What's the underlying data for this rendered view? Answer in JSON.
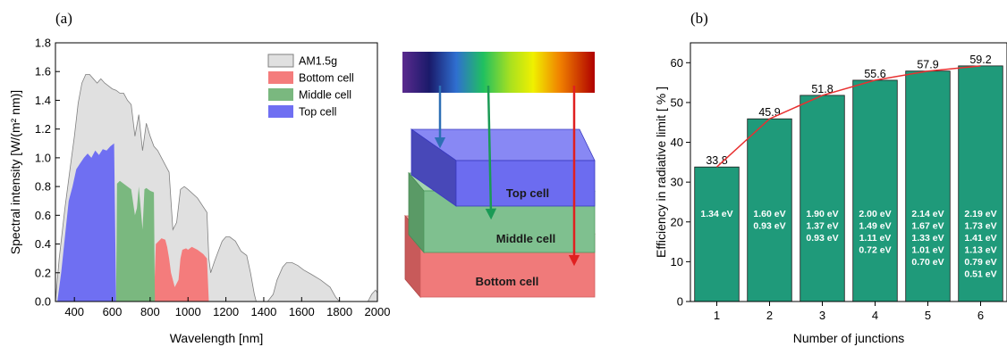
{
  "panel_a": {
    "letter": "(a)"
  },
  "panel_b": {
    "letter": "(b)"
  },
  "diagram": {
    "cells": [
      "Top cell",
      "Middle cell",
      "Bottom cell"
    ],
    "colors": {
      "top": "#7b7bf0",
      "middle": "#7fc08f",
      "bottom": "#f07a7a"
    }
  },
  "chart_data": [
    {
      "type": "area",
      "xlabel": "Wavelength [nm]",
      "ylabel": "Spectral intensity [W/(m² nm)]",
      "xlim": [
        300,
        2000
      ],
      "ylim": [
        0,
        1.8
      ],
      "xticks": [
        400,
        600,
        800,
        1000,
        1200,
        1400,
        1600,
        1800,
        2000
      ],
      "yticks": [
        0.0,
        0.2,
        0.4,
        0.6,
        0.8,
        1.0,
        1.2,
        1.4,
        1.6,
        1.8
      ],
      "legend": "top-right",
      "grid": false,
      "series": [
        {
          "name": "AM1.5g",
          "color": "#e0e0e0",
          "x": [
            300,
            320,
            350,
            380,
            400,
            420,
            440,
            460,
            480,
            500,
            520,
            540,
            560,
            580,
            600,
            620,
            640,
            660,
            680,
            700,
            720,
            740,
            760,
            780,
            800,
            820,
            840,
            860,
            880,
            900,
            920,
            940,
            960,
            980,
            1000,
            1050,
            1100,
            1110,
            1120,
            1140,
            1160,
            1180,
            1200,
            1220,
            1250,
            1280,
            1310,
            1330,
            1350,
            1360,
            1380,
            1420,
            1450,
            1470,
            1500,
            1520,
            1550,
            1580,
            1610,
            1650,
            1700,
            1750,
            1780,
            1800,
            1810,
            1830,
            1950,
            1970,
            1990,
            2000
          ],
          "y": [
            0.0,
            0.3,
            0.65,
            0.95,
            1.15,
            1.38,
            1.52,
            1.58,
            1.58,
            1.55,
            1.52,
            1.55,
            1.52,
            1.5,
            1.48,
            1.47,
            1.45,
            1.45,
            1.4,
            1.37,
            1.15,
            1.3,
            1.05,
            1.24,
            1.15,
            1.08,
            1.05,
            1.0,
            0.95,
            0.9,
            0.5,
            0.55,
            0.78,
            0.8,
            0.78,
            0.72,
            0.62,
            0.3,
            0.2,
            0.28,
            0.35,
            0.42,
            0.45,
            0.45,
            0.42,
            0.35,
            0.32,
            0.2,
            0.05,
            0.0,
            0.0,
            0.0,
            0.05,
            0.15,
            0.24,
            0.27,
            0.27,
            0.25,
            0.22,
            0.19,
            0.15,
            0.1,
            0.03,
            0.0,
            0.0,
            0.0,
            0.0,
            0.05,
            0.08,
            0.06
          ]
        },
        {
          "name": "Bottom cell",
          "color": "#f47c7c",
          "x": [
            820,
            830,
            860,
            880,
            890,
            900,
            910,
            930,
            950,
            960,
            970,
            990,
            1000,
            1020,
            1050,
            1080,
            1100,
            1110
          ],
          "y": [
            0.0,
            0.4,
            0.44,
            0.43,
            0.38,
            0.3,
            0.2,
            0.1,
            0.15,
            0.3,
            0.36,
            0.37,
            0.36,
            0.38,
            0.36,
            0.33,
            0.3,
            0.0
          ]
        },
        {
          "name": "Middle cell",
          "color": "#7ab87f",
          "x": [
            620,
            625,
            640,
            660,
            680,
            700,
            720,
            730,
            740,
            760,
            770,
            780,
            800,
            820,
            825
          ],
          "y": [
            0.0,
            0.82,
            0.84,
            0.82,
            0.8,
            0.78,
            0.6,
            0.65,
            0.8,
            0.5,
            0.78,
            0.79,
            0.77,
            0.76,
            0.0
          ]
        },
        {
          "name": "Top cell",
          "color": "#6f6ff2",
          "x": [
            310,
            330,
            350,
            370,
            390,
            410,
            430,
            450,
            470,
            490,
            510,
            530,
            550,
            570,
            590,
            610,
            620
          ],
          "y": [
            0.0,
            0.2,
            0.45,
            0.7,
            0.8,
            0.92,
            0.96,
            1.0,
            1.03,
            1.0,
            1.05,
            1.02,
            1.06,
            1.05,
            1.08,
            1.1,
            0.0
          ]
        }
      ]
    },
    {
      "type": "bar",
      "xlabel": "Number of junctions",
      "ylabel": "Efficiency in radiative limit [ % ]",
      "ylim": [
        0,
        65
      ],
      "yticks": [
        0,
        10,
        20,
        30,
        40,
        50,
        60
      ],
      "categories": [
        "1",
        "2",
        "3",
        "4",
        "5",
        "6"
      ],
      "values": [
        33.8,
        45.9,
        51.8,
        55.6,
        57.9,
        59.2
      ],
      "value_labels": [
        "33.8",
        "45.9",
        "51.8",
        "55.6",
        "57.9",
        "59.2"
      ],
      "bandgaps": [
        [
          "1.34 eV"
        ],
        [
          "1.60 eV",
          "0.93 eV"
        ],
        [
          "1.90 eV",
          "1.37 eV",
          "0.93 eV"
        ],
        [
          "2.00 eV",
          "1.49 eV",
          "1.11 eV",
          "0.72 eV"
        ],
        [
          "2.14 eV",
          "1.67 eV",
          "1.33 eV",
          "1.01 eV",
          "0.70 eV"
        ],
        [
          "2.19 eV",
          "1.73 eV",
          "1.41 eV",
          "1.13 eV",
          "0.79 eV",
          "0.51 eV"
        ]
      ],
      "bar_color": "#1f9a7a",
      "curve_color": "#e83030"
    }
  ]
}
